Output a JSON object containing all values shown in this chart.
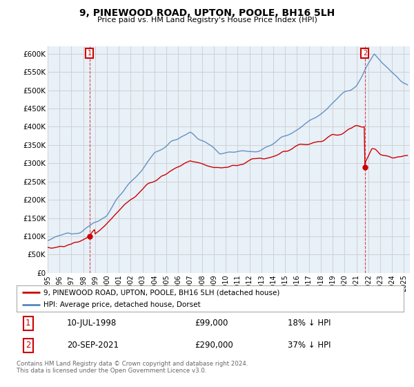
{
  "title": "9, PINEWOOD ROAD, UPTON, POOLE, BH16 5LH",
  "subtitle": "Price paid vs. HM Land Registry's House Price Index (HPI)",
  "legend_label_red": "9, PINEWOOD ROAD, UPTON, POOLE, BH16 5LH (detached house)",
  "legend_label_blue": "HPI: Average price, detached house, Dorset",
  "annotation1_label": "1",
  "annotation1_date": "10-JUL-1998",
  "annotation1_price": "£99,000",
  "annotation1_hpi": "18% ↓ HPI",
  "annotation2_label": "2",
  "annotation2_date": "20-SEP-2021",
  "annotation2_price": "£290,000",
  "annotation2_hpi": "37% ↓ HPI",
  "footer": "Contains HM Land Registry data © Crown copyright and database right 2024.\nThis data is licensed under the Open Government Licence v3.0.",
  "xmin": 1995.0,
  "xmax": 2025.5,
  "ymin": 0,
  "ymax": 620000,
  "yticks": [
    0,
    50000,
    100000,
    150000,
    200000,
    250000,
    300000,
    350000,
    400000,
    450000,
    500000,
    550000,
    600000
  ],
  "ytick_labels": [
    "£0",
    "£50K",
    "£100K",
    "£150K",
    "£200K",
    "£250K",
    "£300K",
    "£350K",
    "£400K",
    "£450K",
    "£500K",
    "£550K",
    "£600K"
  ],
  "red_color": "#cc0000",
  "blue_color": "#5588bb",
  "bg_fill_color": "#e8f0f8",
  "background_color": "#ffffff",
  "grid_color": "#cccccc",
  "point1_x": 1998.53,
  "point1_y": 99000,
  "point2_x": 2021.72,
  "point2_y": 290000
}
